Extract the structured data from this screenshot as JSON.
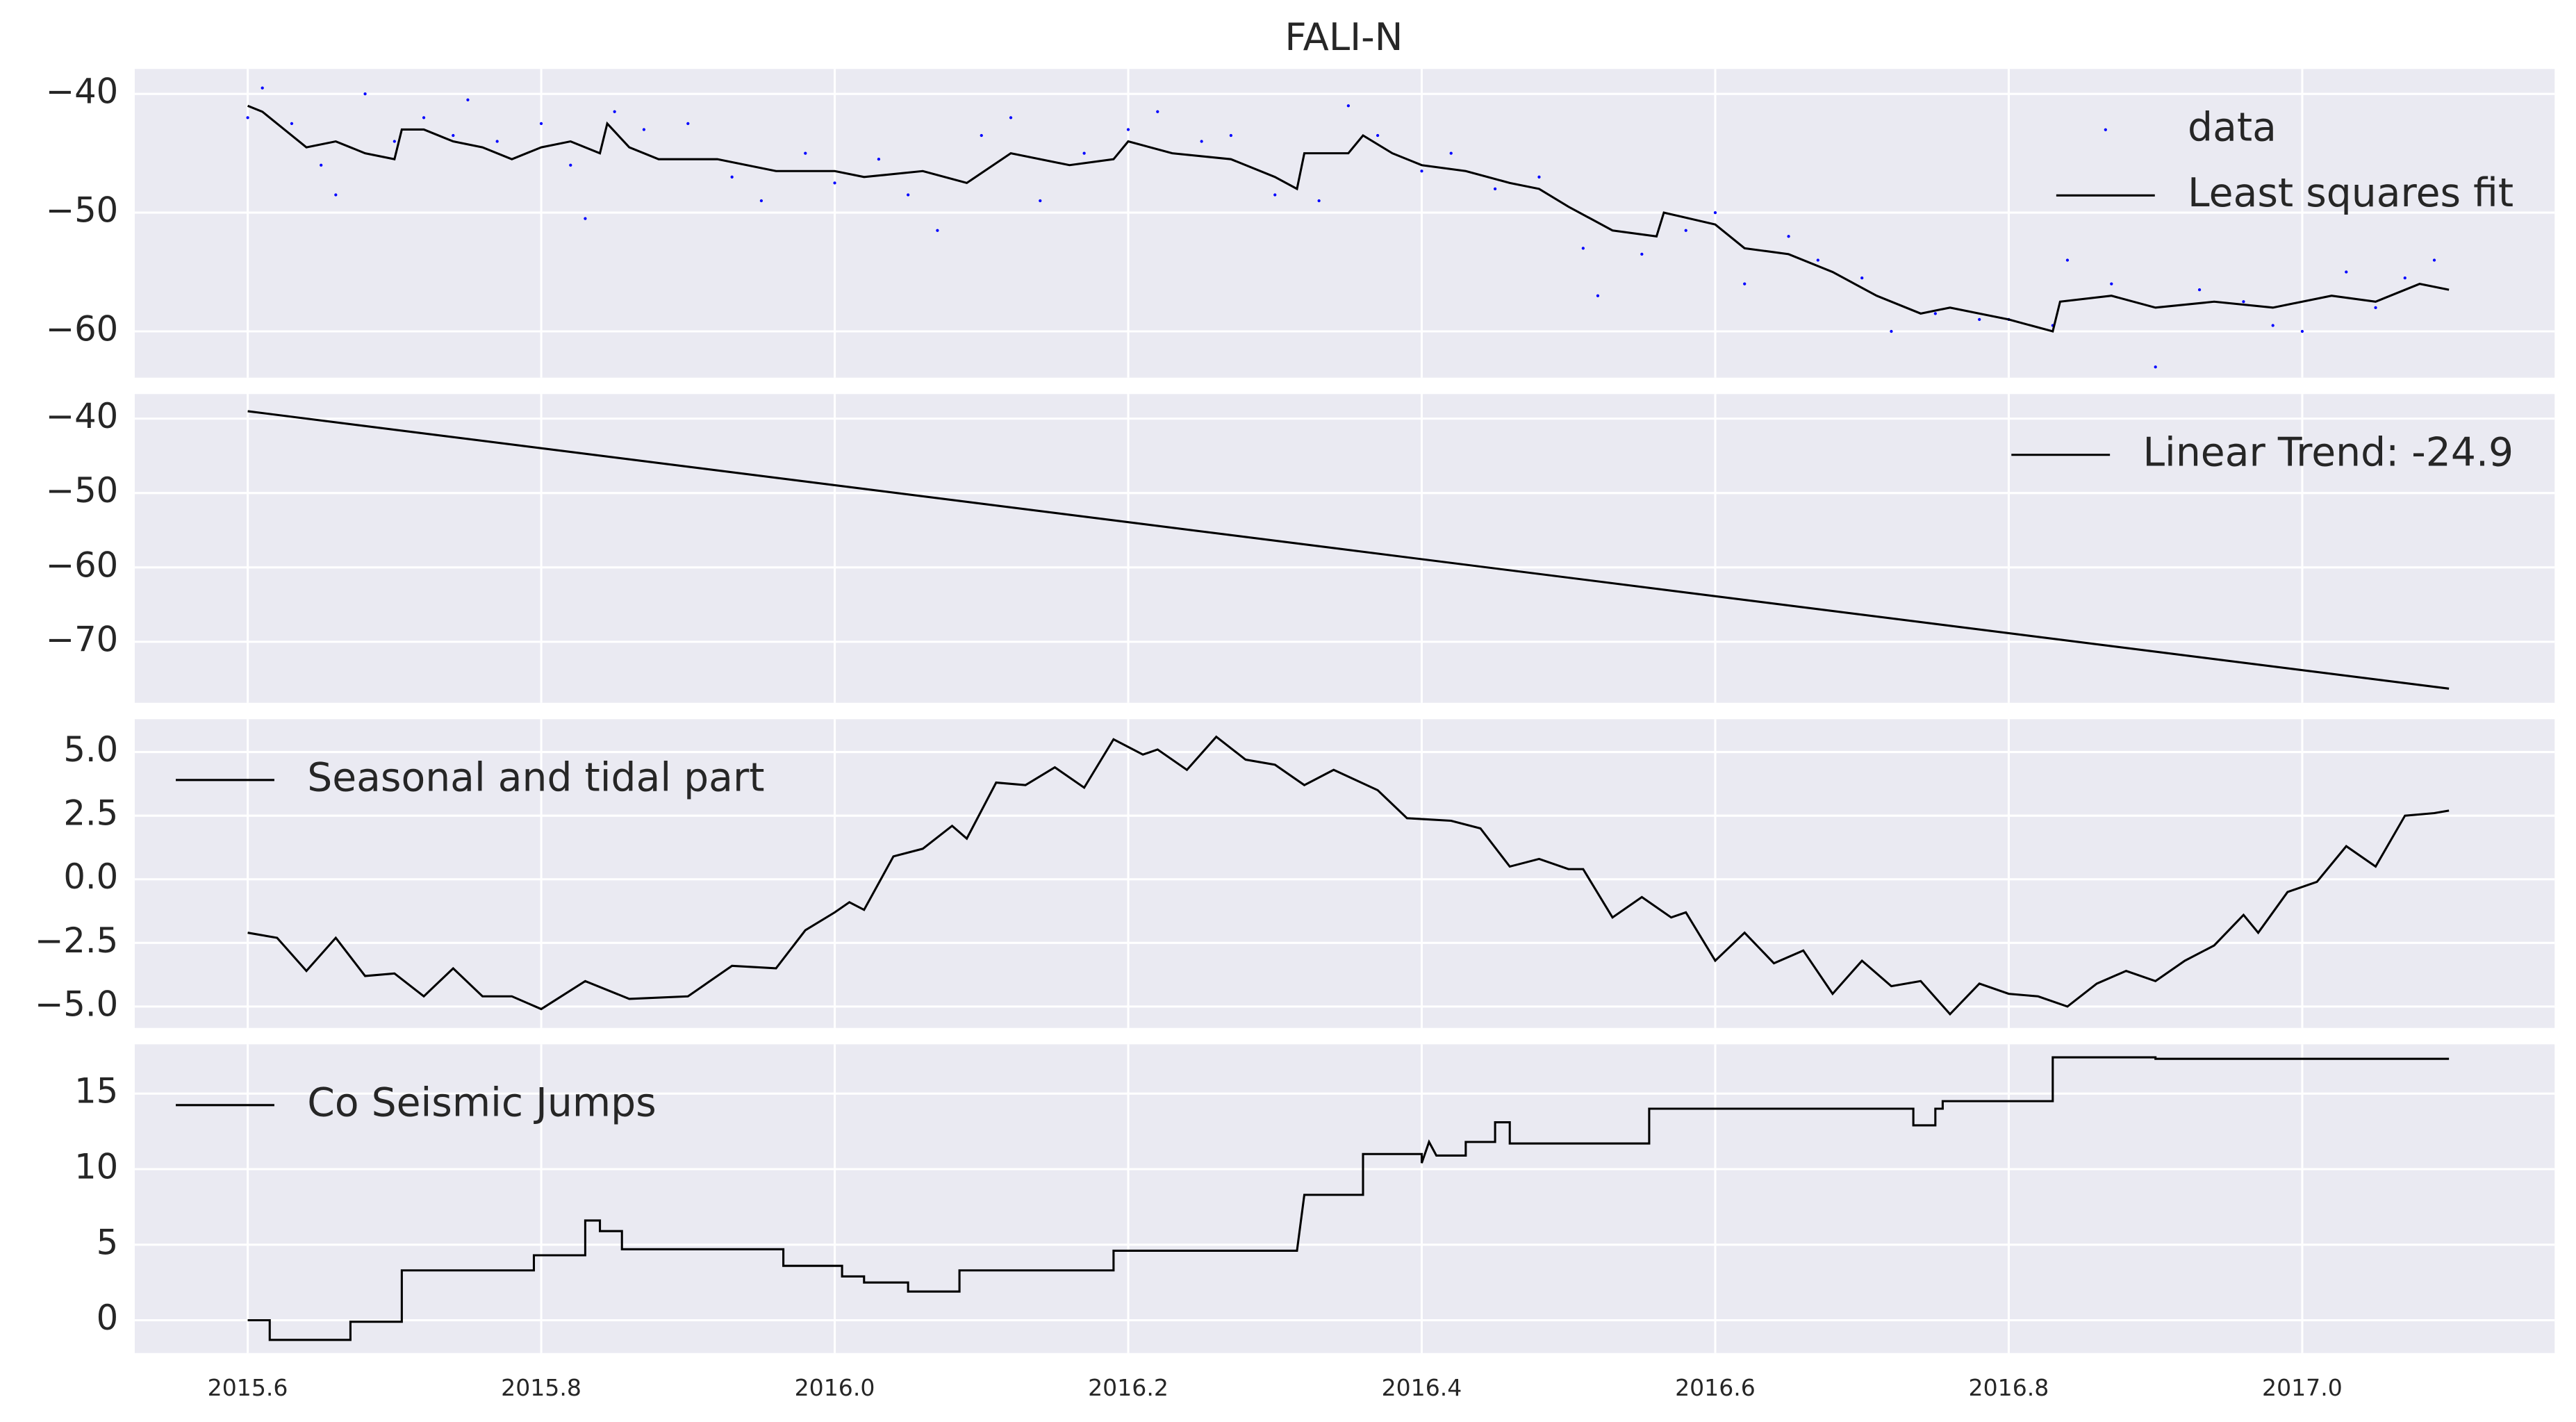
{
  "chart_data": [
    {
      "type": "line",
      "title": "FALI-N",
      "xlim": [
        2015.523,
        2017.172
      ],
      "ylim": [
        -63.9,
        -37.9
      ],
      "yticks": [
        {
          "value": -40,
          "label": "−40"
        },
        {
          "value": -50,
          "label": "−50"
        },
        {
          "value": -60,
          "label": "−60"
        }
      ],
      "grid": true,
      "legend": "upper right",
      "series": [
        {
          "name": "data",
          "color": "#0000ff",
          "mode": "markers",
          "x": [
            2015.6,
            2015.61,
            2015.63,
            2015.65,
            2015.66,
            2015.68,
            2015.7,
            2015.72,
            2015.74,
            2015.75,
            2015.77,
            2015.8,
            2015.82,
            2015.83,
            2015.85,
            2015.87,
            2015.9,
            2015.93,
            2015.95,
            2015.98,
            2016.0,
            2016.03,
            2016.05,
            2016.07,
            2016.1,
            2016.12,
            2016.14,
            2016.17,
            2016.2,
            2016.22,
            2016.25,
            2016.27,
            2016.3,
            2016.33,
            2016.35,
            2016.37,
            2016.4,
            2016.42,
            2016.45,
            2016.48,
            2016.51,
            2016.52,
            2016.55,
            2016.58,
            2016.6,
            2016.62,
            2016.65,
            2016.67,
            2016.7,
            2016.72,
            2016.75,
            2016.78,
            2016.8,
            2016.83,
            2016.84,
            2016.87,
            2016.9,
            2016.93,
            2016.96,
            2016.98,
            2017.0,
            2017.03,
            2017.05,
            2017.07,
            2017.09
          ],
          "values": [
            -42,
            -39.5,
            -42.5,
            -46,
            -48.5,
            -40,
            -44,
            -42,
            -43.5,
            -40.5,
            -44,
            -42.5,
            -46,
            -50.5,
            -41.5,
            -43,
            -42.5,
            -47,
            -49,
            -45,
            -47.5,
            -45.5,
            -48.5,
            -51.5,
            -43.5,
            -42,
            -49,
            -45,
            -43,
            -41.5,
            -44,
            -43.5,
            -48.5,
            -49,
            -41,
            -43.5,
            -46.5,
            -45,
            -48,
            -47,
            -53,
            -57,
            -53.5,
            -51.5,
            -50,
            -56,
            -52,
            -54,
            -55.5,
            -60,
            -58.5,
            -59,
            -59,
            -59.5,
            -54,
            -56,
            -63,
            -56.5,
            -57.5,
            -59.5,
            -60,
            -55,
            -58,
            -55.5,
            -54
          ]
        },
        {
          "name": "Least squares fit",
          "color": "#000000",
          "mode": "line",
          "x": [
            2015.6,
            2015.61,
            2015.62,
            2015.64,
            2015.66,
            2015.68,
            2015.7,
            2015.705,
            2015.72,
            2015.74,
            2015.76,
            2015.78,
            2015.8,
            2015.82,
            2015.84,
            2015.845,
            2015.86,
            2015.88,
            2015.92,
            2015.96,
            2016.0,
            2016.02,
            2016.06,
            2016.09,
            2016.12,
            2016.16,
            2016.19,
            2016.2,
            2016.23,
            2016.27,
            2016.3,
            2016.315,
            2016.32,
            2016.35,
            2016.36,
            2016.38,
            2016.4,
            2016.43,
            2016.46,
            2016.48,
            2016.5,
            2016.53,
            2016.56,
            2016.565,
            2016.6,
            2016.62,
            2016.65,
            2016.68,
            2016.71,
            2016.74,
            2016.76,
            2016.78,
            2016.8,
            2016.83,
            2016.835,
            2016.87,
            2016.9,
            2016.94,
            2016.98,
            2017.02,
            2017.05,
            2017.08,
            2017.1
          ],
          "values": [
            -41,
            -41.5,
            -42.5,
            -44.5,
            -44,
            -45,
            -45.5,
            -43,
            -43,
            -44,
            -44.5,
            -45.5,
            -44.5,
            -44,
            -45,
            -42.5,
            -44.5,
            -45.5,
            -45.5,
            -46.5,
            -46.5,
            -47,
            -46.5,
            -47.5,
            -45,
            -46,
            -45.5,
            -44,
            -45,
            -45.5,
            -47,
            -48,
            -45,
            -45,
            -43.5,
            -45,
            -46,
            -46.5,
            -47.5,
            -48,
            -49.5,
            -51.5,
            -52,
            -50,
            -51,
            -53,
            -53.5,
            -55,
            -57,
            -58.5,
            -58,
            -58.5,
            -59,
            -60,
            -57.5,
            -57,
            -58,
            -57.5,
            -58,
            -57,
            -57.5,
            -56,
            -56.5
          ]
        }
      ]
    },
    {
      "type": "line",
      "xlim": [
        2015.523,
        2017.172
      ],
      "ylim": [
        -78.2,
        -36.7
      ],
      "yticks": [
        {
          "value": -40,
          "label": "−40"
        },
        {
          "value": -50,
          "label": "−50"
        },
        {
          "value": -60,
          "label": "−60"
        },
        {
          "value": -70,
          "label": "−70"
        }
      ],
      "grid": true,
      "legend": "upper right",
      "series": [
        {
          "name": "Linear Trend: -24.9",
          "color": "#000000",
          "mode": "line",
          "x": [
            2015.6,
            2017.1
          ],
          "values": [
            -39,
            -76.3
          ]
        }
      ]
    },
    {
      "type": "line",
      "xlim": [
        2015.523,
        2017.172
      ],
      "ylim": [
        -5.84,
        6.29
      ],
      "yticks": [
        {
          "value": 5,
          "label": "5.0"
        },
        2.5,
        {
          "value": 0,
          "label": "0.0"
        },
        {
          "value": -2.5,
          "label": "−2.5"
        },
        {
          "value": -5,
          "label": "−5.0"
        }
      ],
      "grid": true,
      "legend": "upper left",
      "series": [
        {
          "name": "Seasonal and tidal part",
          "color": "#000000",
          "mode": "line",
          "x": [
            2015.6,
            2015.62,
            2015.64,
            2015.66,
            2015.68,
            2015.7,
            2015.72,
            2015.74,
            2015.76,
            2015.78,
            2015.8,
            2015.83,
            2015.86,
            2015.9,
            2015.93,
            2015.96,
            2015.98,
            2016.0,
            2016.01,
            2016.02,
            2016.04,
            2016.06,
            2016.08,
            2016.09,
            2016.11,
            2016.13,
            2016.15,
            2016.17,
            2016.19,
            2016.21,
            2016.22,
            2016.24,
            2016.26,
            2016.28,
            2016.3,
            2016.32,
            2016.34,
            2016.37,
            2016.39,
            2016.42,
            2016.44,
            2016.46,
            2016.48,
            2016.5,
            2016.51,
            2016.53,
            2016.55,
            2016.57,
            2016.58,
            2016.6,
            2016.62,
            2016.64,
            2016.66,
            2016.68,
            2016.7,
            2016.72,
            2016.74,
            2016.76,
            2016.78,
            2016.8,
            2016.82,
            2016.84,
            2016.86,
            2016.88,
            2016.9,
            2016.92,
            2016.94,
            2016.96,
            2016.97,
            2016.99,
            2017.01,
            2017.03,
            2017.05,
            2017.07,
            2017.09,
            2017.1
          ],
          "values": [
            -2.1,
            -2.3,
            -3.6,
            -2.3,
            -3.8,
            -3.7,
            -4.6,
            -3.5,
            -4.6,
            -4.6,
            -5.1,
            -4,
            -4.7,
            -4.6,
            -3.4,
            -3.5,
            -2,
            -1.3,
            -0.9,
            -1.2,
            0.9,
            1.2,
            2.1,
            1.6,
            3.8,
            3.7,
            4.4,
            3.6,
            5.5,
            4.9,
            5.1,
            4.3,
            5.6,
            4.7,
            4.5,
            3.7,
            4.3,
            3.5,
            2.4,
            2.3,
            2,
            0.5,
            0.8,
            0.4,
            0.4,
            -1.5,
            -0.7,
            -1.5,
            -1.3,
            -3.2,
            -2.1,
            -3.3,
            -2.8,
            -4.5,
            -3.2,
            -4.2,
            -4,
            -5.3,
            -4.1,
            -4.5,
            -4.6,
            -5,
            -4.1,
            -3.6,
            -4,
            -3.2,
            -2.6,
            -1.4,
            -2.1,
            -0.5,
            -0.1,
            1.3,
            0.5,
            2.5,
            2.6,
            2.7
          ]
        }
      ]
    },
    {
      "type": "line",
      "xlim": [
        2015.523,
        2017.172
      ],
      "ylim": [
        -2.17,
        18.26
      ],
      "yticks": [
        15,
        10,
        5,
        0
      ],
      "xticks": [
        2015.6,
        2015.8,
        {
          "value": 2016,
          "label": "2016.0"
        },
        2016.2,
        2016.4,
        2016.6,
        2016.8,
        {
          "value": 2017,
          "label": "2017.0"
        }
      ],
      "grid": true,
      "legend": "upper left",
      "series": [
        {
          "name": "Co Seismic Jumps",
          "color": "#000000",
          "mode": "line",
          "x": [
            2015.6,
            2015.615,
            2015.615,
            2015.67,
            2015.67,
            2015.705,
            2015.705,
            2015.795,
            2015.795,
            2015.83,
            2015.83,
            2015.84,
            2015.84,
            2015.855,
            2015.855,
            2015.965,
            2015.965,
            2016.005,
            2016.005,
            2016.02,
            2016.02,
            2016.05,
            2016.05,
            2016.085,
            2016.085,
            2016.19,
            2016.19,
            2016.315,
            2016.32,
            2016.36,
            2016.36,
            2016.4,
            2016.4,
            2016.405,
            2016.41,
            2016.43,
            2016.43,
            2016.45,
            2016.45,
            2016.46,
            2016.46,
            2016.555,
            2016.555,
            2016.735,
            2016.735,
            2016.75,
            2016.75,
            2016.755,
            2016.755,
            2016.83,
            2016.83,
            2016.9,
            2016.9,
            2017.1
          ],
          "values": [
            0,
            0,
            -1.3,
            -1.3,
            -0.1,
            -0.1,
            3.3,
            3.3,
            4.3,
            4.3,
            6.6,
            6.6,
            5.9,
            5.9,
            4.7,
            4.7,
            3.6,
            3.6,
            2.9,
            2.9,
            2.5,
            2.5,
            1.9,
            1.9,
            3.3,
            3.3,
            4.6,
            4.6,
            8.3,
            8.3,
            11,
            11,
            10.4,
            11.8,
            10.9,
            10.9,
            11.8,
            11.8,
            13.1,
            13.1,
            11.7,
            11.7,
            14,
            14,
            12.9,
            12.9,
            14,
            14,
            14.5,
            14.5,
            17.4,
            17.4,
            17.3,
            17.3
          ]
        }
      ]
    }
  ]
}
